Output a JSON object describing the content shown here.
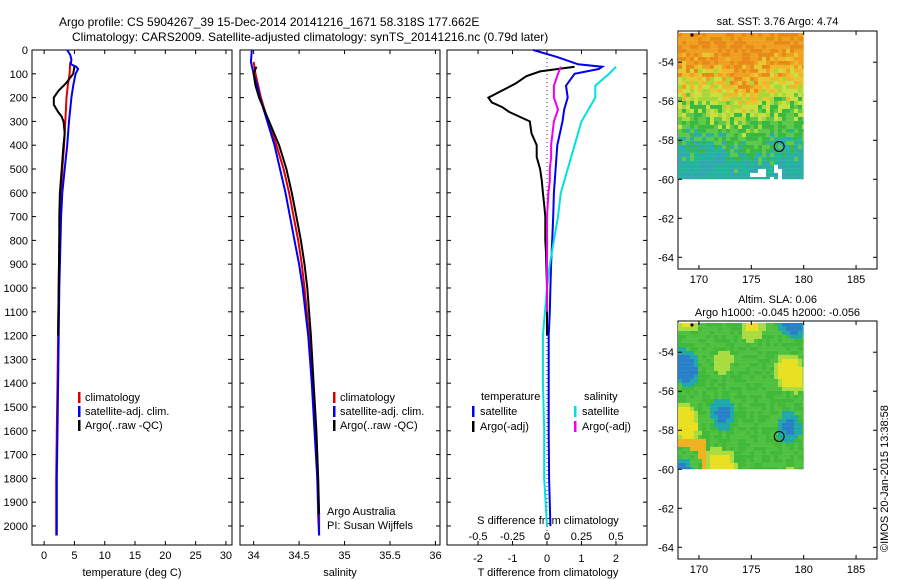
{
  "header": {
    "line1": "Argo profile: CS 5904267_39 15-Dec-2014 20141216_1671 58.318S 177.662E",
    "line2": "Climatology: CARS2009. Satellite-adjusted climatology: synTS_20141216.nc (0.79d later)"
  },
  "credit": "©IMOS 20-Jan-2015 13:38:58",
  "colors": {
    "climatology": "#dd0000",
    "satellite": "#0000ee",
    "argo": "#000000",
    "s_satellite": "#00e0e0",
    "s_argo": "#ee00ee"
  },
  "chart_data": [
    {
      "id": "temperature",
      "type": "line",
      "xlabel": "temperature (deg C)",
      "ylabel": "",
      "xlim": [
        -2,
        31
      ],
      "ylim": [
        2080,
        0
      ],
      "xticks": [
        0,
        5,
        10,
        15,
        20,
        25,
        30
      ],
      "yticks": [
        0,
        100,
        200,
        300,
        400,
        500,
        600,
        700,
        800,
        900,
        1000,
        1100,
        1200,
        1300,
        1400,
        1500,
        1600,
        1700,
        1800,
        1900,
        2000
      ],
      "legend": [
        "climatology",
        "satellite-adj. clim.",
        "Argo(..raw -QC)"
      ],
      "series": [
        {
          "name": "climatology",
          "color": "#dd0000",
          "depth": [
            50,
            100,
            150,
            200,
            300,
            400,
            500,
            600,
            700,
            800,
            1000,
            1200,
            1400,
            1600,
            1800,
            1950,
            2040
          ],
          "values": [
            4.3,
            4.2,
            3.9,
            3.7,
            3.5,
            3.3,
            3.0,
            2.8,
            2.6,
            2.5,
            2.4,
            2.3,
            2.2,
            2.1,
            2.0,
            2.0,
            2.0
          ]
        },
        {
          "name": "satellite-adj. clim.",
          "color": "#0000ee",
          "depth": [
            0,
            20,
            40,
            60,
            70,
            80,
            100,
            150,
            200,
            300,
            400,
            500,
            600,
            700,
            800,
            1000,
            1200,
            1400,
            1600,
            1800,
            1950,
            2040
          ],
          "values": [
            3.8,
            4.3,
            4.5,
            4.4,
            5.3,
            5.6,
            5.2,
            4.8,
            4.5,
            4.1,
            3.8,
            3.4,
            3.0,
            2.8,
            2.7,
            2.5,
            2.4,
            2.3,
            2.2,
            2.1,
            2.1,
            2.1
          ]
        },
        {
          "name": "Argo(..raw -QC)",
          "color": "#000000",
          "depth": [
            70,
            100,
            140,
            170,
            200,
            230,
            260,
            280,
            300,
            350,
            400,
            500,
            600,
            700,
            800,
            1000,
            1200
          ],
          "values": [
            5.0,
            4.8,
            3.6,
            2.4,
            1.6,
            1.6,
            2.3,
            2.9,
            3.2,
            3.4,
            3.2,
            2.9,
            2.6,
            2.5,
            2.5,
            2.4,
            2.3
          ]
        }
      ],
      "annotations": []
    },
    {
      "id": "salinity",
      "type": "line",
      "xlabel": "salinity",
      "ylabel": "",
      "xlim": [
        33.85,
        36.05
      ],
      "ylim": [
        2080,
        0
      ],
      "xticks": [
        34,
        34.5,
        35,
        35.5,
        36
      ],
      "legend": [
        "climatology",
        "satellite-adj. clim.",
        "Argo(..raw -QC)"
      ],
      "series": [
        {
          "name": "climatology",
          "color": "#dd0000",
          "depth": [
            50,
            100,
            150,
            200,
            300,
            400,
            500,
            600,
            700,
            800,
            900,
            1000,
            1200,
            1400,
            1600,
            1800,
            1950,
            2040
          ],
          "values": [
            34.0,
            34.02,
            34.05,
            34.08,
            34.16,
            34.25,
            34.33,
            34.39,
            34.44,
            34.49,
            34.53,
            34.56,
            34.61,
            34.65,
            34.68,
            34.7,
            34.72,
            34.72
          ]
        },
        {
          "name": "satellite-adj. clim.",
          "color": "#0000ee",
          "depth": [
            0,
            50,
            100,
            150,
            200,
            300,
            400,
            500,
            600,
            700,
            800,
            900,
            1000,
            1200,
            1400,
            1600,
            1800,
            1950,
            2040
          ],
          "values": [
            33.98,
            33.97,
            34.0,
            34.04,
            34.07,
            34.15,
            34.23,
            34.29,
            34.35,
            34.4,
            34.45,
            34.5,
            34.54,
            34.6,
            34.64,
            34.67,
            34.7,
            34.71,
            34.72
          ]
        },
        {
          "name": "Argo(..raw -QC)",
          "color": "#000000",
          "depth": [
            70,
            100,
            150,
            200,
            300,
            400,
            500,
            600,
            700,
            800,
            900,
            1000,
            1200,
            1400,
            1600,
            1800,
            1950
          ],
          "values": [
            34.03,
            34.0,
            34.02,
            34.06,
            34.17,
            34.28,
            34.36,
            34.42,
            34.47,
            34.52,
            34.56,
            34.59,
            34.63,
            34.66,
            34.69,
            34.71,
            34.72
          ]
        }
      ],
      "annotations": [
        "Argo Australia",
        "PI: Susan Wijffels"
      ]
    },
    {
      "id": "differences",
      "type": "line",
      "xlabel": "T difference from climatology",
      "x2label": "S difference from climatology",
      "xlim": [
        -2.9,
        2.9
      ],
      "ylim": [
        2080,
        0
      ],
      "xticks": [
        -2,
        -1,
        0,
        1,
        2
      ],
      "x2ticks": [
        -0.5,
        -0.25,
        0,
        0.25,
        0.5
      ],
      "legend_titles": [
        "temperature",
        "salinity"
      ],
      "legend": [
        "satellite",
        "Argo(-adj)",
        "satellite",
        "Argo(-adj)"
      ],
      "series": [
        {
          "name": "T satellite",
          "color": "#0000ee",
          "depth": [
            0,
            30,
            60,
            70,
            80,
            100,
            150,
            200,
            250,
            300,
            400,
            500,
            600,
            700,
            800,
            900,
            1000,
            1100,
            1200,
            1400,
            1600,
            1800,
            2000
          ],
          "values": [
            -0.4,
            0.3,
            0.9,
            1.6,
            1.5,
            0.8,
            0.55,
            0.6,
            0.5,
            0.45,
            0.3,
            0.25,
            0.2,
            0.18,
            0.15,
            0.12,
            0.1,
            0.08,
            0.05,
            0.05,
            0.05,
            0.06,
            0.1
          ]
        },
        {
          "name": "T Argo(-adj)",
          "color": "#000000",
          "depth": [
            70,
            90,
            110,
            140,
            170,
            200,
            220,
            240,
            260,
            280,
            300,
            350,
            400,
            450,
            500,
            550,
            600,
            650,
            700,
            750,
            800,
            850,
            900,
            1000,
            1100,
            1200
          ],
          "values": [
            0.8,
            -0.2,
            -0.6,
            -0.9,
            -1.3,
            -1.7,
            -1.6,
            -1.3,
            -1.1,
            -0.8,
            -0.5,
            -0.45,
            -0.3,
            -0.3,
            -0.2,
            -0.15,
            -0.12,
            -0.08,
            -0.05,
            -0.05,
            -0.05,
            -0.03,
            -0.02,
            0.0,
            0.0,
            0.0
          ]
        },
        {
          "name": "S satellite",
          "color": "#00e0e0",
          "depth": [
            70,
            100,
            150,
            200,
            300,
            400,
            500,
            600,
            700,
            800,
            900,
            1000,
            1200,
            1400,
            1600,
            1800,
            2000
          ],
          "values": [
            0.5,
            0.45,
            0.35,
            0.35,
            0.25,
            0.2,
            0.15,
            0.1,
            0.08,
            0.05,
            0.02,
            0.0,
            -0.03,
            -0.03,
            -0.02,
            -0.02,
            0.0
          ]
        },
        {
          "name": "S Argo(-adj)",
          "color": "#ee00ee",
          "depth": [
            70,
            100,
            150,
            200,
            250,
            300,
            350,
            400,
            450,
            500,
            550,
            600,
            700,
            800,
            900,
            1000,
            1100
          ],
          "values": [
            0.1,
            0.08,
            0.05,
            0.05,
            0.08,
            0.05,
            0.04,
            0.03,
            0.03,
            0.02,
            0.02,
            0.01,
            0.0,
            0.0,
            0.0,
            0.0,
            0.0
          ]
        }
      ],
      "annotations": []
    }
  ],
  "maps": [
    {
      "id": "sst-map",
      "type": "heatmap",
      "title": "sat. SST: 3.76 Argo: 4.74",
      "xticks": [
        170,
        175,
        180,
        185
      ],
      "yticks": [
        -54,
        -56,
        -58,
        -60,
        -62,
        -64
      ],
      "xlim": [
        168,
        187
      ],
      "ylim": [
        -64.6,
        -52.4
      ],
      "data_extent": {
        "lon": [
          168,
          180
        ],
        "lat": [
          -60,
          -52.5
        ]
      },
      "marker": {
        "lon": 177.66,
        "lat": -58.32
      }
    },
    {
      "id": "sla-map",
      "type": "heatmap",
      "title": "Altim. SLA: 0.06",
      "subtitle": "Argo h1000: -0.045 h2000: -0.056",
      "xticks": [
        170,
        175,
        180,
        185
      ],
      "yticks": [
        -54,
        -56,
        -58,
        -60,
        -62,
        -64
      ],
      "xlim": [
        168,
        187
      ],
      "ylim": [
        -64.6,
        -52.4
      ],
      "data_extent": {
        "lon": [
          168,
          180
        ],
        "lat": [
          -60,
          -52.5
        ]
      },
      "marker": {
        "lon": 177.66,
        "lat": -58.32
      }
    }
  ]
}
